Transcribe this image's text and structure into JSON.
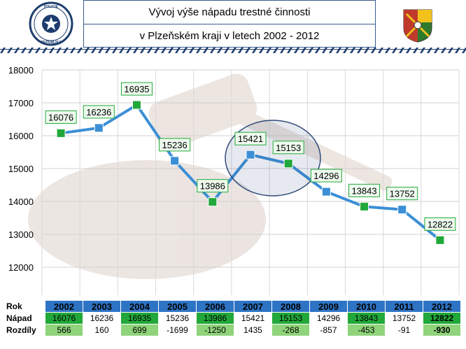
{
  "header": {
    "title_line1": "Vývoj výše nápadu trestné činnosti",
    "title_line2": "v Plzeňském kraji v letech 2002 - 2012"
  },
  "logos": {
    "left_logo_icon": "police-czech-republic-star-emblem",
    "left_logo_text": "POLICIE ČESKÉ REPUBLIKY",
    "right_logo_icon": "police-regional-shield-emblem"
  },
  "colors": {
    "line": "#3b8fd6",
    "marker_blue": "#3b8fd6",
    "marker_green": "#22a83a",
    "label_border": "#22a83a",
    "label_bg": "#eefaee",
    "table_header": "#2e74c5",
    "table_green_dark": "#22a83a",
    "table_green_light": "#8fd37a",
    "highlight_ellipse": "#2f4b7a"
  },
  "chart_data": {
    "type": "line",
    "title": "",
    "xlabel": "",
    "ylabel": "",
    "ylim": [
      12000,
      18000
    ],
    "yticks": [
      12000,
      13000,
      14000,
      15000,
      16000,
      17000,
      18000
    ],
    "grid": true,
    "categories": [
      "2002",
      "2003",
      "2004",
      "2005",
      "2006",
      "2007",
      "2008",
      "2009",
      "2010",
      "2011",
      "2012"
    ],
    "series": [
      {
        "values": [
          16076,
          16236,
          16935,
          15236,
          13986,
          15421,
          15153,
          14296,
          13843,
          13752,
          12822
        ]
      }
    ],
    "marker_colors": [
      "green",
      "blue",
      "green",
      "blue",
      "green",
      "blue",
      "green",
      "blue",
      "green",
      "blue",
      "green"
    ],
    "annotations": [
      "highlight ellipse around 2007-2008"
    ]
  },
  "table": {
    "row_labels": [
      "Rok",
      "Nápad",
      "Rozdíly"
    ],
    "years": [
      "2002",
      "2003",
      "2004",
      "2005",
      "2006",
      "2007",
      "2008",
      "2009",
      "2010",
      "2011",
      "2012"
    ],
    "napad": [
      "16076",
      "16236",
      "16935",
      "15236",
      "13986",
      "15421",
      "15153",
      "14296",
      "13843",
      "13752",
      "12822"
    ],
    "rozdily": [
      "566",
      "160",
      "699",
      "-1699",
      "-1250",
      "1435",
      "-268",
      "-857",
      "-453",
      "-91",
      "-930"
    ],
    "napad_fill": [
      "g-dark",
      "white",
      "g-dark",
      "white",
      "g-dark",
      "white",
      "g-dark",
      "white",
      "g-dark",
      "white",
      "g-dark"
    ],
    "rozdily_fill": [
      "g-light",
      "white",
      "g-light",
      "white",
      "g-light",
      "white",
      "g-light",
      "white",
      "g-light",
      "white",
      "g-light"
    ]
  }
}
